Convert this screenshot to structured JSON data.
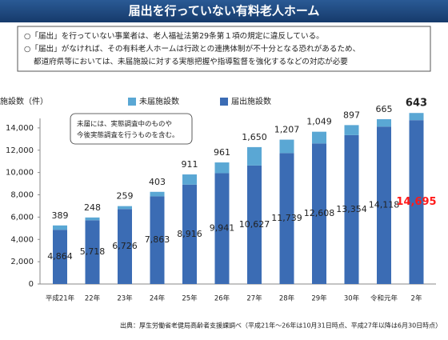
{
  "header": {
    "title": "届出を行っていない有料老人ホーム"
  },
  "notes": [
    "○「届出」を行っていない事業者は、老人福祉法第29条第１項の規定に違反している。",
    "○「届出」がなければ、その有料老人ホームは行政との連携体制が不十分となる恐れがあるため、",
    "都道府県等においては、未届施設に対する実態把握や指導監督を強化するなどの対応が必要"
  ],
  "chart_data": {
    "type": "stacked_bar",
    "y_label": "施設数（件）",
    "annotation": "未届には、実態調査中のものや今後実態調査を行うものを含む。",
    "categories": [
      "平成21年",
      "22年",
      "23年",
      "24年",
      "25年",
      "26年",
      "27年",
      "28年",
      "29年",
      "30年",
      "令和元年",
      "2年"
    ],
    "series": [
      {
        "name": "届出施設数",
        "color": "#3b6cb4",
        "values": [
          4864,
          5718,
          6726,
          7863,
          8916,
          9941,
          10627,
          11739,
          12608,
          13354,
          14118,
          14695
        ],
        "value_labels": [
          "4,864",
          "5,718",
          "6,726",
          "7,863",
          "8,916",
          "9,941",
          "10,627",
          "11,739",
          "12,608",
          "13,354",
          "14,118",
          "14,695"
        ]
      },
      {
        "name": "未届施設数",
        "color": "#5aa7d4",
        "values": [
          389,
          248,
          259,
          403,
          911,
          961,
          1650,
          1207,
          1049,
          897,
          665,
          643
        ],
        "value_labels": [
          "389",
          "248",
          "259",
          "403",
          "911",
          "961",
          "1,650",
          "1,207",
          "1,049",
          "897",
          "665",
          "643"
        ]
      }
    ],
    "ylim": [
      0,
      16000
    ],
    "yticks": [
      0,
      {
        "value": 2000,
        "label": "2,000"
      },
      {
        "value": 4000,
        "label": "4,000"
      },
      {
        "value": 6000,
        "label": "6,000"
      },
      {
        "value": 8000,
        "label": "8,000"
      },
      {
        "value": 10000,
        "label": "10,000"
      },
      {
        "value": 12000,
        "label": "12,000"
      },
      {
        "value": 14000,
        "label": "14,000"
      }
    ],
    "source": "出典：厚生労働省老健局高齢者支援課調べ（平成21年～26年は10月31日時点、平成27年以降は6月30日時点）"
  }
}
